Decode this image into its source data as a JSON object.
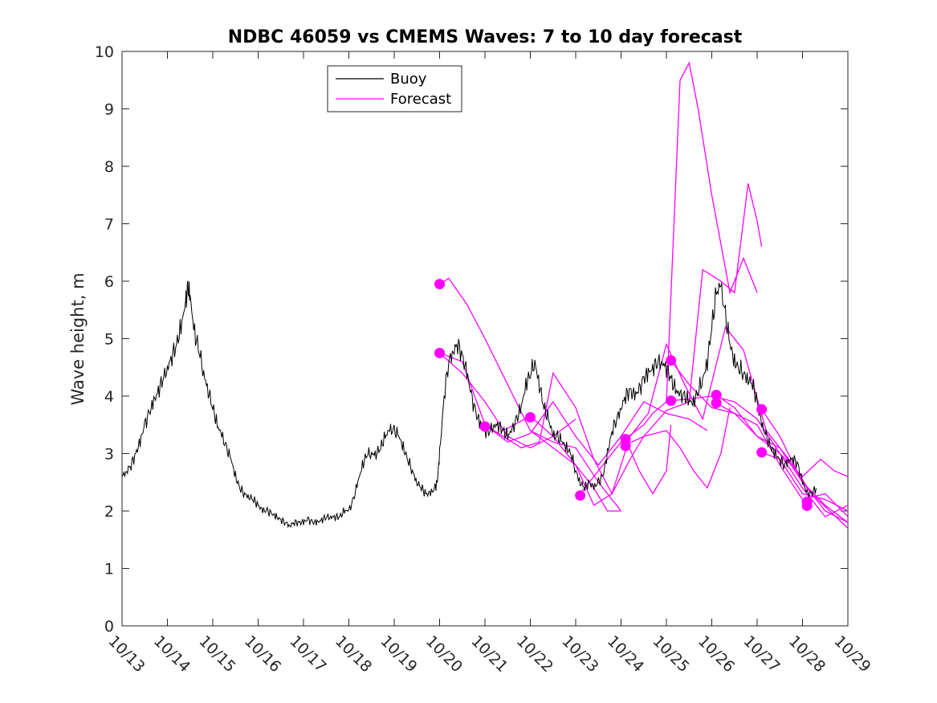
{
  "chart_data": {
    "type": "line",
    "title": "NDBC 46059 vs CMEMS Waves: 7 to 10 day forecast",
    "xlabel": "",
    "ylabel": "Wave height, m",
    "xlim": [
      0,
      16
    ],
    "ylim": [
      0,
      10
    ],
    "x_tick_labels": [
      "10/13",
      "10/14",
      "10/15",
      "10/16",
      "10/17",
      "10/18",
      "10/19",
      "10/20",
      "10/21",
      "10/22",
      "10/23",
      "10/24",
      "10/25",
      "10/26",
      "10/27",
      "10/28",
      "10/29"
    ],
    "y_tick_labels": [
      "0",
      "1",
      "2",
      "3",
      "4",
      "5",
      "6",
      "7",
      "8",
      "9",
      "10"
    ],
    "legend": {
      "position": "top-left",
      "entries": [
        {
          "label": "Buoy",
          "color": "#000000"
        },
        {
          "label": "Forecast",
          "color": "#ff00ff"
        }
      ]
    },
    "colors": {
      "buoy": "#000000",
      "forecast": "#ff00ff"
    },
    "buoy": {
      "name": "Buoy",
      "points": [
        [
          0.0,
          2.6
        ],
        [
          0.1,
          2.7
        ],
        [
          0.2,
          2.8
        ],
        [
          0.3,
          3.0
        ],
        [
          0.4,
          3.2
        ],
        [
          0.5,
          3.5
        ],
        [
          0.6,
          3.7
        ],
        [
          0.7,
          3.9
        ],
        [
          0.8,
          4.1
        ],
        [
          0.9,
          4.3
        ],
        [
          1.0,
          4.5
        ],
        [
          1.1,
          4.7
        ],
        [
          1.2,
          4.9
        ],
        [
          1.3,
          5.2
        ],
        [
          1.4,
          5.6
        ],
        [
          1.45,
          5.9
        ],
        [
          1.5,
          5.7
        ],
        [
          1.6,
          5.1
        ],
        [
          1.7,
          4.8
        ],
        [
          1.8,
          4.4
        ],
        [
          1.9,
          4.1
        ],
        [
          2.0,
          3.8
        ],
        [
          2.1,
          3.5
        ],
        [
          2.2,
          3.3
        ],
        [
          2.3,
          3.1
        ],
        [
          2.4,
          2.9
        ],
        [
          2.5,
          2.6
        ],
        [
          2.6,
          2.4
        ],
        [
          2.7,
          2.3
        ],
        [
          2.8,
          2.25
        ],
        [
          2.9,
          2.2
        ],
        [
          3.0,
          2.1
        ],
        [
          3.1,
          2.0
        ],
        [
          3.2,
          2.0
        ],
        [
          3.3,
          1.95
        ],
        [
          3.4,
          1.9
        ],
        [
          3.5,
          1.85
        ],
        [
          3.6,
          1.8
        ],
        [
          3.7,
          1.75
        ],
        [
          3.8,
          1.8
        ],
        [
          3.9,
          1.8
        ],
        [
          4.0,
          1.8
        ],
        [
          4.1,
          1.85
        ],
        [
          4.2,
          1.8
        ],
        [
          4.3,
          1.8
        ],
        [
          4.4,
          1.85
        ],
        [
          4.5,
          1.9
        ],
        [
          4.6,
          1.9
        ],
        [
          4.7,
          1.9
        ],
        [
          4.8,
          1.9
        ],
        [
          4.9,
          2.0
        ],
        [
          5.0,
          2.0
        ],
        [
          5.1,
          2.2
        ],
        [
          5.2,
          2.5
        ],
        [
          5.3,
          2.8
        ],
        [
          5.4,
          3.0
        ],
        [
          5.5,
          3.0
        ],
        [
          5.6,
          3.0
        ],
        [
          5.7,
          3.1
        ],
        [
          5.8,
          3.3
        ],
        [
          5.9,
          3.4
        ],
        [
          6.0,
          3.4
        ],
        [
          6.1,
          3.3
        ],
        [
          6.2,
          3.1
        ],
        [
          6.3,
          2.9
        ],
        [
          6.4,
          2.7
        ],
        [
          6.5,
          2.5
        ],
        [
          6.6,
          2.4
        ],
        [
          6.7,
          2.3
        ],
        [
          6.8,
          2.3
        ],
        [
          6.9,
          2.4
        ],
        [
          6.95,
          2.5
        ],
        [
          7.0,
          3.0
        ],
        [
          7.1,
          4.0
        ],
        [
          7.2,
          4.6
        ],
        [
          7.3,
          4.8
        ],
        [
          7.4,
          4.9
        ],
        [
          7.5,
          4.7
        ],
        [
          7.6,
          4.4
        ],
        [
          7.7,
          4.0
        ],
        [
          7.8,
          3.7
        ],
        [
          7.9,
          3.5
        ],
        [
          8.0,
          3.4
        ],
        [
          8.1,
          3.4
        ],
        [
          8.2,
          3.5
        ],
        [
          8.3,
          3.5
        ],
        [
          8.4,
          3.4
        ],
        [
          8.5,
          3.3
        ],
        [
          8.6,
          3.4
        ],
        [
          8.7,
          3.6
        ],
        [
          8.8,
          3.8
        ],
        [
          8.9,
          4.2
        ],
        [
          9.0,
          4.4
        ],
        [
          9.1,
          4.6
        ],
        [
          9.2,
          4.2
        ],
        [
          9.3,
          3.8
        ],
        [
          9.4,
          3.6
        ],
        [
          9.5,
          3.3
        ],
        [
          9.6,
          3.3
        ],
        [
          9.7,
          3.2
        ],
        [
          9.8,
          3.1
        ],
        [
          9.9,
          3.0
        ],
        [
          10.0,
          2.7
        ],
        [
          10.1,
          2.5
        ],
        [
          10.2,
          2.4
        ],
        [
          10.3,
          2.5
        ],
        [
          10.4,
          2.4
        ],
        [
          10.5,
          2.5
        ],
        [
          10.6,
          2.6
        ],
        [
          10.7,
          3.0
        ],
        [
          10.8,
          3.4
        ],
        [
          10.9,
          3.6
        ],
        [
          11.0,
          3.8
        ],
        [
          11.1,
          4.0
        ],
        [
          11.2,
          4.1
        ],
        [
          11.3,
          4.0
        ],
        [
          11.4,
          4.1
        ],
        [
          11.5,
          4.3
        ],
        [
          11.6,
          4.4
        ],
        [
          11.7,
          4.5
        ],
        [
          11.8,
          4.6
        ],
        [
          11.9,
          4.6
        ],
        [
          12.0,
          4.5
        ],
        [
          12.1,
          4.3
        ],
        [
          12.2,
          4.1
        ],
        [
          12.3,
          4.0
        ],
        [
          12.4,
          4.0
        ],
        [
          12.5,
          3.9
        ],
        [
          12.6,
          3.9
        ],
        [
          12.7,
          4.1
        ],
        [
          12.8,
          4.3
        ],
        [
          12.9,
          4.6
        ],
        [
          13.0,
          5.2
        ],
        [
          13.1,
          5.8
        ],
        [
          13.2,
          5.9
        ],
        [
          13.3,
          5.4
        ],
        [
          13.4,
          4.9
        ],
        [
          13.5,
          4.6
        ],
        [
          13.6,
          4.5
        ],
        [
          13.7,
          4.4
        ],
        [
          13.8,
          4.3
        ],
        [
          13.9,
          4.2
        ],
        [
          14.0,
          3.9
        ],
        [
          14.1,
          3.5
        ],
        [
          14.2,
          3.3
        ],
        [
          14.3,
          3.1
        ],
        [
          14.4,
          3.0
        ],
        [
          14.5,
          2.9
        ],
        [
          14.6,
          2.8
        ],
        [
          14.7,
          2.9
        ],
        [
          14.8,
          2.9
        ],
        [
          14.9,
          2.8
        ],
        [
          15.0,
          2.5
        ],
        [
          15.1,
          2.3
        ],
        [
          15.2,
          2.3
        ],
        [
          15.3,
          2.4
        ]
      ]
    },
    "forecast_series": [
      {
        "name": "Forecast",
        "points": [
          [
            7.0,
            4.75
          ],
          [
            7.5,
            4.4
          ],
          [
            8.0,
            3.9
          ],
          [
            8.5,
            3.3
          ],
          [
            9.0,
            3.1
          ],
          [
            9.5,
            3.3
          ],
          [
            10.0,
            3.6
          ]
        ]
      },
      {
        "name": "Forecast",
        "points": [
          [
            7.0,
            5.95
          ],
          [
            7.2,
            6.05
          ],
          [
            7.6,
            5.6
          ],
          [
            8.0,
            5.0
          ],
          [
            8.5,
            4.2
          ],
          [
            9.0,
            3.4
          ],
          [
            9.5,
            3.2
          ],
          [
            10.0,
            3.1
          ],
          [
            10.5,
            2.5
          ],
          [
            11.0,
            2.0
          ]
        ]
      },
      {
        "name": "Forecast",
        "points": [
          [
            7.0,
            4.75
          ],
          [
            7.5,
            4.6
          ],
          [
            8.0,
            3.5
          ],
          [
            8.5,
            3.2
          ],
          [
            9.0,
            3.35
          ],
          [
            9.5,
            3.9
          ],
          [
            10.0,
            3.3
          ],
          [
            10.5,
            2.8
          ],
          [
            11.0,
            3.3
          ],
          [
            11.5,
            3.9
          ],
          [
            12.0,
            3.7
          ],
          [
            12.5,
            3.6
          ],
          [
            12.9,
            3.4
          ]
        ]
      },
      {
        "name": "Forecast",
        "points": [
          [
            8.0,
            3.5
          ],
          [
            8.4,
            3.3
          ],
          [
            8.8,
            3.1
          ],
          [
            9.2,
            3.2
          ],
          [
            9.5,
            4.4
          ],
          [
            10.0,
            3.8
          ],
          [
            10.4,
            2.9
          ],
          [
            10.8,
            2.3
          ],
          [
            11.2,
            3.3
          ],
          [
            11.6,
            3.7
          ],
          [
            12.0,
            4.9
          ],
          [
            12.4,
            4.2
          ],
          [
            12.8,
            3.6
          ],
          [
            13.3,
            5.2
          ],
          [
            13.7,
            4.8
          ],
          [
            14.2,
            3.4
          ],
          [
            14.7,
            2.9
          ],
          [
            15.2,
            2.3
          ],
          [
            16.0,
            1.7
          ]
        ]
      },
      {
        "name": "Forecast",
        "points": [
          [
            8.4,
            3.4
          ],
          [
            9.0,
            3.65
          ],
          [
            9.5,
            3.3
          ],
          [
            10.0,
            2.8
          ],
          [
            10.4,
            2.1
          ],
          [
            10.8,
            2.3
          ],
          [
            11.2,
            2.9
          ],
          [
            11.5,
            3.3
          ],
          [
            12.0,
            3.75
          ],
          [
            12.5,
            3.9
          ],
          [
            12.8,
            6.2
          ],
          [
            13.2,
            6.0
          ],
          [
            13.5,
            5.8
          ],
          [
            13.8,
            7.7
          ],
          [
            14.0,
            7.05
          ],
          [
            14.1,
            6.6
          ]
        ]
      },
      {
        "name": "Forecast",
        "points": [
          [
            9.0,
            3.4
          ],
          [
            9.5,
            3.1
          ],
          [
            10.0,
            2.8
          ],
          [
            10.4,
            2.4
          ],
          [
            10.7,
            2.0
          ],
          [
            11.0,
            2.0
          ]
        ]
      },
      {
        "name": "Forecast",
        "points": [
          [
            10.1,
            2.3
          ],
          [
            10.5,
            2.7
          ],
          [
            11.0,
            3.2
          ],
          [
            11.5,
            3.5
          ],
          [
            11.7,
            3.7
          ],
          [
            12.0,
            3.9
          ],
          [
            12.3,
            9.5
          ],
          [
            12.5,
            9.8
          ],
          [
            12.7,
            9.0
          ],
          [
            13.0,
            7.5
          ],
          [
            13.4,
            5.8
          ],
          [
            13.7,
            6.4
          ],
          [
            14.0,
            5.8
          ]
        ]
      },
      {
        "name": "Forecast",
        "points": [
          [
            11.1,
            3.25
          ],
          [
            11.4,
            2.7
          ],
          [
            11.7,
            2.3
          ],
          [
            12.0,
            2.7
          ],
          [
            12.1,
            3.5
          ]
        ]
      },
      {
        "name": "Forecast",
        "points": [
          [
            11.1,
            3.15
          ],
          [
            11.5,
            3.3
          ],
          [
            12.0,
            3.4
          ],
          [
            12.3,
            3.1
          ],
          [
            12.6,
            2.7
          ],
          [
            12.9,
            2.4
          ],
          [
            13.2,
            3.0
          ],
          [
            13.4,
            3.8
          ]
        ]
      },
      {
        "name": "Forecast",
        "points": [
          [
            12.1,
            4.62
          ],
          [
            12.5,
            4.2
          ],
          [
            13.0,
            3.8
          ],
          [
            13.5,
            3.7
          ],
          [
            14.0,
            3.5
          ],
          [
            14.5,
            2.8
          ],
          [
            15.0,
            2.2
          ],
          [
            15.5,
            2.3
          ],
          [
            16.0,
            1.9
          ]
        ]
      },
      {
        "name": "Forecast",
        "points": [
          [
            12.1,
            3.92
          ],
          [
            12.5,
            3.95
          ],
          [
            13.0,
            4.0
          ],
          [
            13.5,
            3.9
          ],
          [
            14.0,
            3.6
          ],
          [
            14.5,
            3.0
          ],
          [
            15.0,
            2.4
          ],
          [
            15.5,
            1.9
          ],
          [
            16.0,
            2.1
          ]
        ]
      },
      {
        "name": "Forecast",
        "points": [
          [
            13.1,
            4.02
          ],
          [
            13.5,
            3.8
          ],
          [
            14.0,
            3.3
          ],
          [
            14.5,
            3.1
          ],
          [
            15.0,
            2.5
          ],
          [
            15.5,
            2.0
          ],
          [
            16.0,
            1.8
          ]
        ]
      },
      {
        "name": "Forecast",
        "points": [
          [
            13.1,
            3.88
          ],
          [
            13.5,
            3.7
          ],
          [
            14.0,
            3.3
          ],
          [
            14.5,
            3.0
          ],
          [
            15.0,
            2.6
          ],
          [
            15.4,
            2.9
          ],
          [
            15.7,
            2.7
          ],
          [
            16.0,
            2.6
          ]
        ]
      },
      {
        "name": "Forecast",
        "points": [
          [
            14.1,
            3.77
          ],
          [
            14.5,
            3.3
          ],
          [
            15.0,
            2.5
          ],
          [
            15.5,
            2.1
          ],
          [
            16.0,
            1.8
          ]
        ]
      },
      {
        "name": "Forecast",
        "points": [
          [
            14.1,
            3.02
          ],
          [
            14.5,
            2.9
          ],
          [
            15.0,
            2.3
          ],
          [
            15.5,
            2.2
          ],
          [
            16.0,
            2.0
          ]
        ]
      }
    ],
    "forecast_start_markers": [
      [
        7.0,
        5.95
      ],
      [
        7.0,
        4.75
      ],
      [
        8.0,
        3.47
      ],
      [
        9.0,
        3.63
      ],
      [
        10.1,
        2.27
      ],
      [
        11.1,
        3.25
      ],
      [
        11.1,
        3.13
      ],
      [
        12.1,
        4.62
      ],
      [
        12.1,
        3.92
      ],
      [
        13.1,
        4.02
      ],
      [
        13.1,
        3.88
      ],
      [
        14.1,
        3.77
      ],
      [
        14.1,
        3.02
      ],
      [
        15.1,
        2.16
      ],
      [
        15.1,
        2.09
      ]
    ]
  }
}
